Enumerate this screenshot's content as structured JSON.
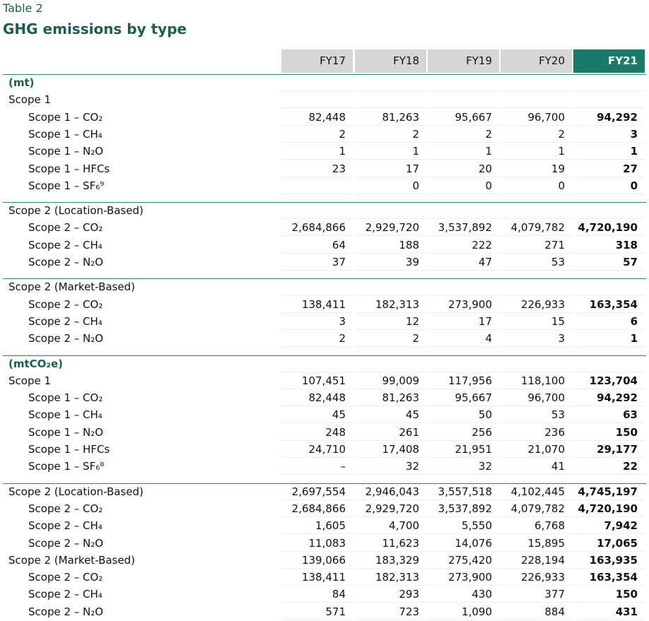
{
  "header": {
    "label": "Table 2",
    "title": "GHG emissions by type"
  },
  "table": {
    "columns": [
      "FY17",
      "FY18",
      "FY19",
      "FY20",
      "FY21"
    ],
    "sections": [
      {
        "unit": "(mt)",
        "blocks": [
          [
            {
              "label": "Scope 1",
              "rows": [
                {
                  "label": "Scope 1 – CO₂",
                  "values": [
                    "82,448",
                    "81,263",
                    "95,667",
                    "96,700",
                    "94,292"
                  ]
                },
                {
                  "label": "Scope 1 – CH₄",
                  "values": [
                    "2",
                    "2",
                    "2",
                    "2",
                    "3"
                  ]
                },
                {
                  "label": "Scope 1 – N₂O",
                  "values": [
                    "1",
                    "1",
                    "1",
                    "1",
                    "1"
                  ]
                },
                {
                  "label": "Scope 1 – HFCs",
                  "values": [
                    "23",
                    "17",
                    "20",
                    "19",
                    "27"
                  ]
                },
                {
                  "label": "Scope 1 – SF₆⁹",
                  "values": [
                    null,
                    "0",
                    "0",
                    "0",
                    "0"
                  ]
                }
              ]
            }
          ],
          [
            {
              "label": "Scope 2 (Location-Based)",
              "rows": [
                {
                  "label": "Scope 2 – CO₂",
                  "values": [
                    "2,684,866",
                    "2,929,720",
                    "3,537,892",
                    "4,079,782",
                    "4,720,190"
                  ]
                },
                {
                  "label": "Scope 2 – CH₄",
                  "values": [
                    "64",
                    "188",
                    "222",
                    "271",
                    "318"
                  ]
                },
                {
                  "label": "Scope 2 – N₂O",
                  "values": [
                    "37",
                    "39",
                    "47",
                    "53",
                    "57"
                  ]
                }
              ]
            }
          ],
          [
            {
              "label": "Scope 2 (Market-Based)",
              "rows": [
                {
                  "label": "Scope 2 – CO₂",
                  "values": [
                    "138,411",
                    "182,313",
                    "273,900",
                    "226,933",
                    "163,354"
                  ]
                },
                {
                  "label": "Scope 2 – CH₄",
                  "values": [
                    "3",
                    "12",
                    "17",
                    "15",
                    "6"
                  ]
                },
                {
                  "label": "Scope 2 – N₂O",
                  "values": [
                    "2",
                    "2",
                    "4",
                    "3",
                    "1"
                  ]
                }
              ]
            }
          ]
        ]
      },
      {
        "unit": "(mtCO₂e)",
        "blocks": [
          [
            {
              "label": "Scope 1",
              "values": [
                "107,451",
                "99,009",
                "117,956",
                "118,100",
                "123,704"
              ],
              "rows": [
                {
                  "label": "Scope 1 – CO₂",
                  "values": [
                    "82,448",
                    "81,263",
                    "95,667",
                    "96,700",
                    "94,292"
                  ]
                },
                {
                  "label": "Scope 1 – CH₄",
                  "values": [
                    "45",
                    "45",
                    "50",
                    "53",
                    "63"
                  ]
                },
                {
                  "label": "Scope 1 – N₂O",
                  "values": [
                    "248",
                    "261",
                    "256",
                    "236",
                    "150"
                  ]
                },
                {
                  "label": "Scope 1 – HFCs",
                  "values": [
                    "24,710",
                    "17,408",
                    "21,951",
                    "21,070",
                    "29,177"
                  ]
                },
                {
                  "label": "Scope 1 – SF₆⁸",
                  "values": [
                    "–",
                    "32",
                    "32",
                    "41",
                    "22"
                  ]
                }
              ]
            }
          ],
          [
            {
              "label": "Scope 2 (Location-Based)",
              "values": [
                "2,697,554",
                "2,946,043",
                "3,557,518",
                "4,102,445",
                "4,745,197"
              ],
              "rows": [
                {
                  "label": "Scope 2 – CO₂",
                  "values": [
                    "2,684,866",
                    "2,929,720",
                    "3,537,892",
                    "4,079,782",
                    "4,720,190"
                  ]
                },
                {
                  "label": "Scope 2 – CH₄",
                  "values": [
                    "1,605",
                    "4,700",
                    "5,550",
                    "6,768",
                    "7,942"
                  ]
                },
                {
                  "label": "Scope 2 – N₂O",
                  "values": [
                    "11,083",
                    "11,623",
                    "14,076",
                    "15,895",
                    "17,065"
                  ]
                }
              ]
            },
            {
              "label": "Scope 2 (Market-Based)",
              "values": [
                "139,066",
                "183,329",
                "275,420",
                "228,194",
                "163,935"
              ],
              "rows": [
                {
                  "label": "Scope 2 – CO₂",
                  "values": [
                    "138,411",
                    "182,313",
                    "273,900",
                    "226,933",
                    "163,354"
                  ]
                },
                {
                  "label": "Scope 2 – CH₄",
                  "values": [
                    "84",
                    "293",
                    "430",
                    "377",
                    "150"
                  ]
                },
                {
                  "label": "Scope 2 – N₂O",
                  "values": [
                    "571",
                    "723",
                    "1,090",
                    "884",
                    "431"
                  ]
                }
              ]
            }
          ]
        ]
      }
    ]
  }
}
